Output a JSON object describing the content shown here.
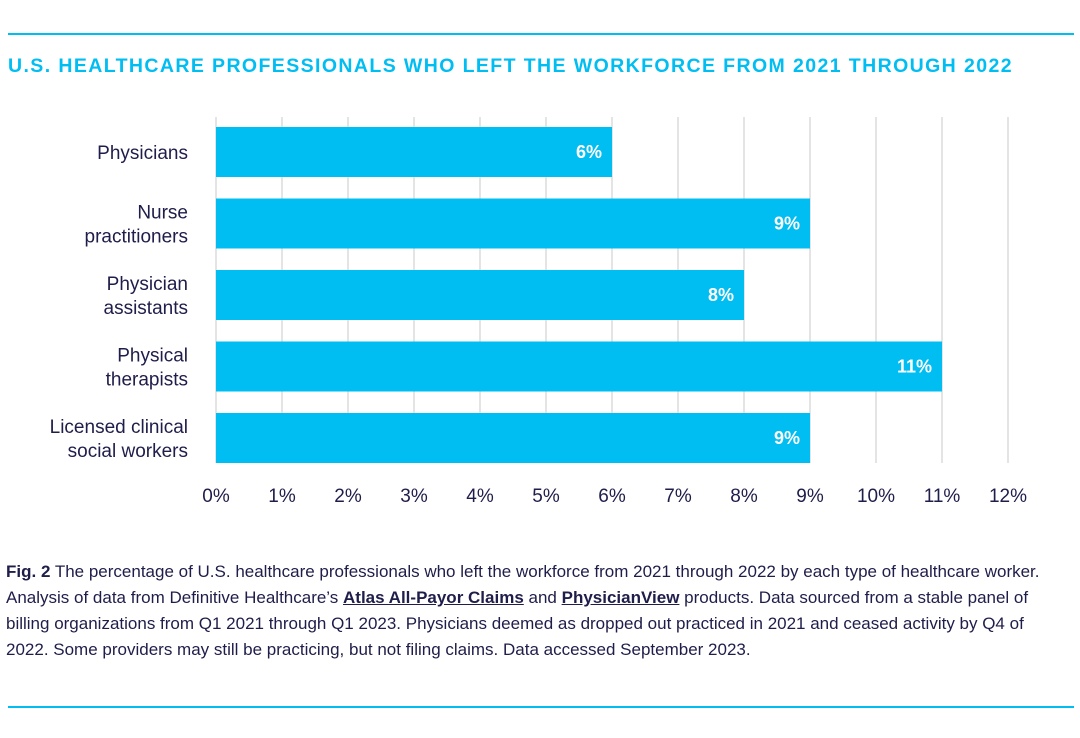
{
  "colors": {
    "accent": "#00bdf2",
    "text": "#1f1d4a",
    "grid": "#c8c8c8",
    "bar_label": "#ffffff"
  },
  "chart_data": {
    "type": "bar",
    "orientation": "horizontal",
    "title": "U.S. HEALTHCARE PROFESSIONALS WHO LEFT THE WORKFORCE FROM 2021 THROUGH 2022",
    "categories": [
      [
        "Physicians"
      ],
      [
        "Nurse",
        "practitioners"
      ],
      [
        "Physician",
        "assistants"
      ],
      [
        "Physical",
        "therapists"
      ],
      [
        "Licensed clinical",
        "social workers"
      ]
    ],
    "values": [
      6,
      9,
      8,
      11,
      9
    ],
    "value_labels": [
      "6%",
      "9%",
      "8%",
      "11%",
      "9%"
    ],
    "xlim": [
      0,
      12
    ],
    "xticks": [
      0,
      1,
      2,
      3,
      4,
      5,
      6,
      7,
      8,
      9,
      10,
      11,
      12
    ],
    "xtick_labels": [
      "0%",
      "1%",
      "2%",
      "3%",
      "4%",
      "5%",
      "6%",
      "7%",
      "8%",
      "9%",
      "10%",
      "11%",
      "12%"
    ],
    "xlabel": "",
    "ylabel": "",
    "grid": true,
    "legend": "none"
  },
  "caption": {
    "fig_label": "Fig. 2",
    "text_1": " The percentage of U.S. healthcare professionals who left the workforce from 2021 through 2022 by each type of healthcare worker. Analysis of data from Definitive Healthcare’s ",
    "link_1": "Atlas All-Payor Claims",
    "text_2": " and ",
    "link_2": "PhysicianView",
    "text_3": " products. Data sourced from a stable panel of billing organizations from Q1 2021 through Q1 2023. Physicians deemed as dropped out practiced in 2021 and ceased activity by Q4 of 2022. Some providers may still be practicing, but not filing claims. Data accessed September 2023."
  }
}
